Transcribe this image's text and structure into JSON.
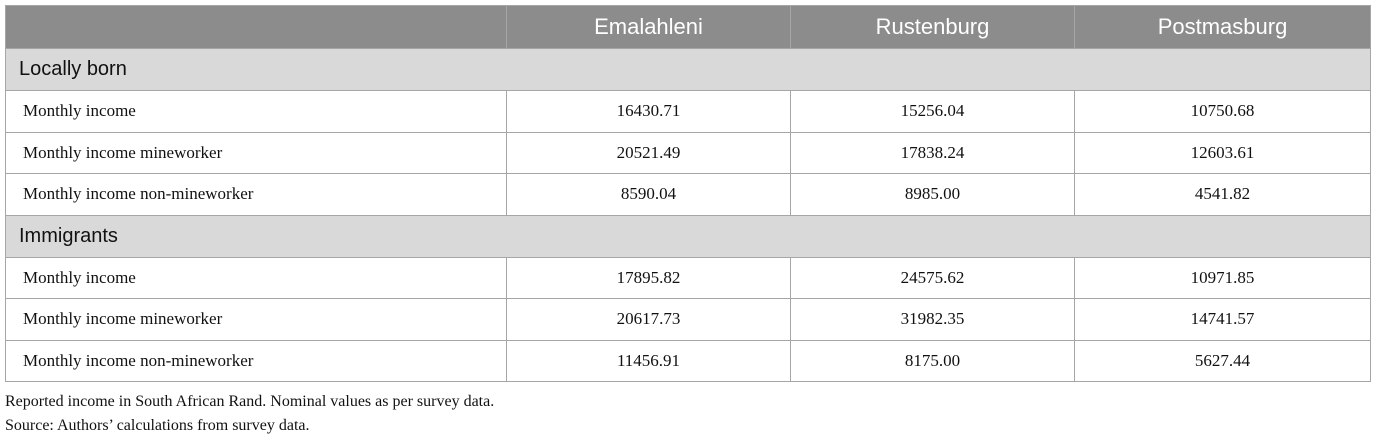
{
  "table": {
    "columns": [
      "",
      "Emalahleni",
      "Rustenburg",
      "Postmasburg"
    ],
    "sections": [
      {
        "title": "Locally born",
        "rows": [
          {
            "label": "Monthly income",
            "values": [
              "16430.71",
              "15256.04",
              "10750.68"
            ]
          },
          {
            "label": "Monthly income mineworker",
            "values": [
              "20521.49",
              "17838.24",
              "12603.61"
            ]
          },
          {
            "label": "Monthly income non-mineworker",
            "values": [
              "8590.04",
              "8985.00",
              "4541.82"
            ]
          }
        ]
      },
      {
        "title": "Immigrants",
        "rows": [
          {
            "label": "Monthly income",
            "values": [
              "17895.82",
              "24575.62",
              "10971.85"
            ]
          },
          {
            "label": "Monthly income mineworker",
            "values": [
              "20617.73",
              "31982.35",
              "14741.57"
            ]
          },
          {
            "label": "Monthly income non-mineworker",
            "values": [
              "11456.91",
              "8175.00",
              "5627.44"
            ]
          }
        ]
      }
    ]
  },
  "notes": {
    "line1": "Reported income in South African Rand. Nominal values as per survey data.",
    "line2": "Source: Authors’ calculations from survey data."
  }
}
